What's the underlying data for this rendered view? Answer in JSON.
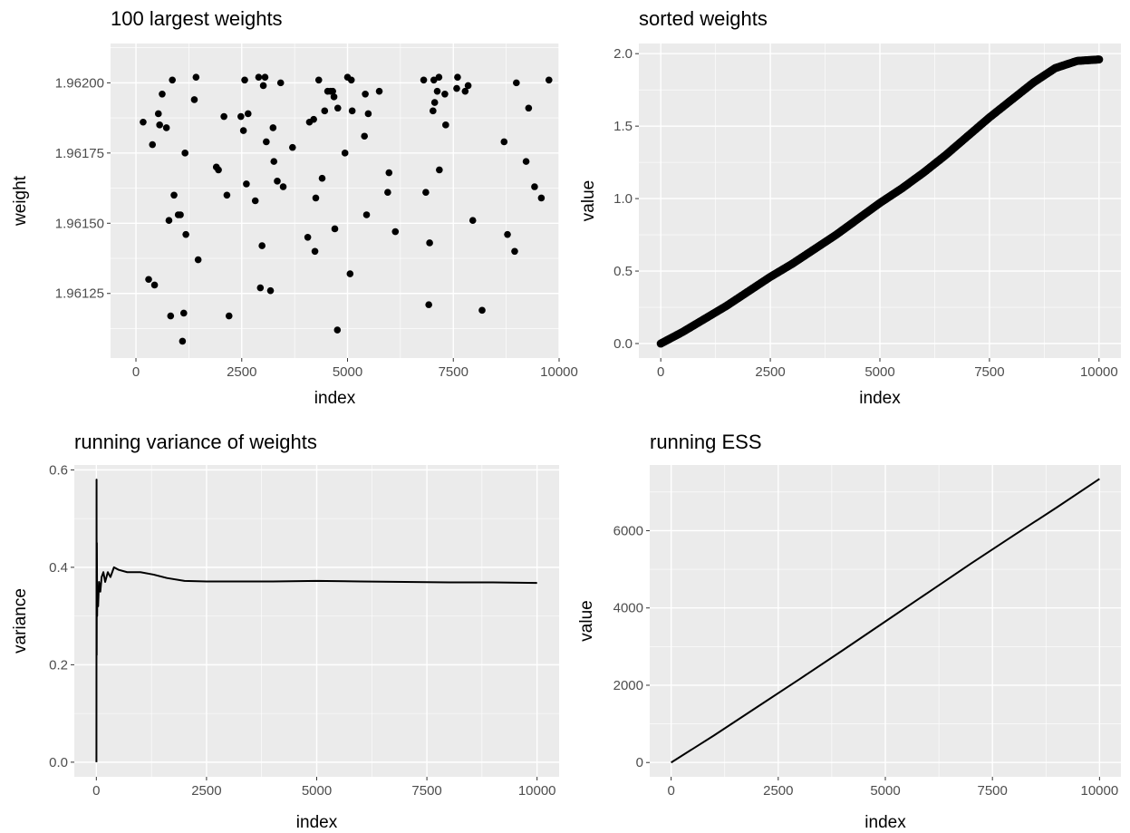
{
  "chart_data": [
    {
      "type": "scatter",
      "title": "100 largest weights",
      "xlabel": "index",
      "ylabel": "weight",
      "xlim": [
        -600,
        10000
      ],
      "ylim": [
        1.96102,
        1.96214
      ],
      "xticks": [
        0,
        2500,
        5000,
        7500,
        10000
      ],
      "xtick_labels": [
        "0",
        "2500",
        "5000",
        "7500",
        "10000"
      ],
      "yticks": [
        1.96125,
        1.9615,
        1.96175,
        1.962
      ],
      "ytick_labels": [
        "1.96125",
        "1.96150",
        "1.96175",
        "1.96200"
      ],
      "grid": true,
      "color": "#000000",
      "points": [
        [
          170,
          1.96186
        ],
        [
          300,
          1.9613
        ],
        [
          390,
          1.96178
        ],
        [
          440,
          1.96128
        ],
        [
          530,
          1.96189
        ],
        [
          560,
          1.96185
        ],
        [
          620,
          1.96196
        ],
        [
          720,
          1.96184
        ],
        [
          780,
          1.96151
        ],
        [
          820,
          1.96117
        ],
        [
          860,
          1.96201
        ],
        [
          900,
          1.9616
        ],
        [
          1000,
          1.96153
        ],
        [
          1050,
          1.96153
        ],
        [
          1130,
          1.96118
        ],
        [
          1100,
          1.96108
        ],
        [
          1160,
          1.96175
        ],
        [
          1180,
          1.96146
        ],
        [
          1380,
          1.96194
        ],
        [
          1420,
          1.96202
        ],
        [
          1470,
          1.96137
        ],
        [
          1900,
          1.9617
        ],
        [
          1950,
          1.96169
        ],
        [
          2080,
          1.96188
        ],
        [
          2150,
          1.9616
        ],
        [
          2200,
          1.96117
        ],
        [
          2480,
          1.96188
        ],
        [
          2540,
          1.96183
        ],
        [
          2570,
          1.96201
        ],
        [
          2610,
          1.96164
        ],
        [
          2650,
          1.96189
        ],
        [
          2820,
          1.96158
        ],
        [
          2900,
          1.96202
        ],
        [
          2940,
          1.96127
        ],
        [
          2980,
          1.96142
        ],
        [
          3010,
          1.96199
        ],
        [
          3050,
          1.96202
        ],
        [
          3080,
          1.96179
        ],
        [
          3180,
          1.96126
        ],
        [
          3240,
          1.96184
        ],
        [
          3260,
          1.96172
        ],
        [
          3340,
          1.96165
        ],
        [
          3420,
          1.962
        ],
        [
          3480,
          1.96163
        ],
        [
          3700,
          1.96177
        ],
        [
          4060,
          1.96145
        ],
        [
          4100,
          1.96186
        ],
        [
          4200,
          1.96187
        ],
        [
          4230,
          1.9614
        ],
        [
          4250,
          1.96159
        ],
        [
          4320,
          1.96201
        ],
        [
          4400,
          1.96166
        ],
        [
          4460,
          1.9619
        ],
        [
          4530,
          1.96197
        ],
        [
          4600,
          1.96197
        ],
        [
          4650,
          1.96197
        ],
        [
          4680,
          1.96195
        ],
        [
          4700,
          1.96148
        ],
        [
          4760,
          1.96112
        ],
        [
          4770,
          1.96191
        ],
        [
          4940,
          1.96175
        ],
        [
          5000,
          1.96202
        ],
        [
          5060,
          1.96132
        ],
        [
          5090,
          1.96201
        ],
        [
          5110,
          1.9619
        ],
        [
          5400,
          1.96181
        ],
        [
          5420,
          1.96196
        ],
        [
          5450,
          1.96153
        ],
        [
          5490,
          1.96189
        ],
        [
          5750,
          1.96197
        ],
        [
          5950,
          1.96161
        ],
        [
          5980,
          1.96168
        ],
        [
          6130,
          1.96147
        ],
        [
          6800,
          1.96201
        ],
        [
          6850,
          1.96161
        ],
        [
          6920,
          1.96121
        ],
        [
          6940,
          1.96143
        ],
        [
          7020,
          1.9619
        ],
        [
          7040,
          1.96201
        ],
        [
          7060,
          1.96193
        ],
        [
          7120,
          1.96197
        ],
        [
          7160,
          1.96202
        ],
        [
          7170,
          1.96169
        ],
        [
          7300,
          1.96196
        ],
        [
          7320,
          1.96185
        ],
        [
          7580,
          1.96198
        ],
        [
          7600,
          1.96202
        ],
        [
          7780,
          1.96197
        ],
        [
          7850,
          1.96199
        ],
        [
          7960,
          1.96151
        ],
        [
          8180,
          1.96119
        ],
        [
          8700,
          1.96179
        ],
        [
          8780,
          1.96146
        ],
        [
          8950,
          1.9614
        ],
        [
          8990,
          1.962
        ],
        [
          9220,
          1.96172
        ],
        [
          9280,
          1.96191
        ],
        [
          9420,
          1.96163
        ],
        [
          9580,
          1.96159
        ],
        [
          9760,
          1.96201
        ]
      ]
    },
    {
      "type": "scatter",
      "title": "sorted weights",
      "xlabel": "index",
      "ylabel": "value",
      "xlim": [
        -500,
        10500
      ],
      "ylim": [
        -0.1,
        2.07
      ],
      "xticks": [
        0,
        2500,
        5000,
        7500,
        10000
      ],
      "xtick_labels": [
        "0",
        "2500",
        "5000",
        "7500",
        "10000"
      ],
      "yticks": [
        0.0,
        0.5,
        1.0,
        1.5,
        2.0
      ],
      "ytick_labels": [
        "0.0",
        "0.5",
        "1.0",
        "1.5",
        "2.0"
      ],
      "grid": true,
      "color": "#000000",
      "curve_samples": [
        [
          0,
          0.0
        ],
        [
          500,
          0.08
        ],
        [
          1000,
          0.17
        ],
        [
          1500,
          0.26
        ],
        [
          2000,
          0.36
        ],
        [
          2500,
          0.46
        ],
        [
          3000,
          0.55
        ],
        [
          3500,
          0.65
        ],
        [
          4000,
          0.75
        ],
        [
          4500,
          0.86
        ],
        [
          5000,
          0.97
        ],
        [
          5500,
          1.07
        ],
        [
          6000,
          1.18
        ],
        [
          6500,
          1.3
        ],
        [
          7000,
          1.43
        ],
        [
          7500,
          1.56
        ],
        [
          8000,
          1.68
        ],
        [
          8500,
          1.8
        ],
        [
          9000,
          1.9
        ],
        [
          9500,
          1.95
        ],
        [
          10000,
          1.96
        ]
      ]
    },
    {
      "type": "line",
      "title": "running variance of weights",
      "xlabel": "index",
      "ylabel": "variance",
      "xlim": [
        -500,
        10500
      ],
      "ylim": [
        -0.03,
        0.61
      ],
      "xticks": [
        0,
        2500,
        5000,
        7500,
        10000
      ],
      "xtick_labels": [
        "0",
        "2500",
        "5000",
        "7500",
        "10000"
      ],
      "yticks": [
        0.0,
        0.2,
        0.4,
        0.6
      ],
      "ytick_labels": [
        "0.0",
        "0.2",
        "0.4",
        "0.6"
      ],
      "grid": true,
      "color": "#000000",
      "points": [
        [
          2,
          0.0
        ],
        [
          5,
          0.58
        ],
        [
          8,
          0.22
        ],
        [
          12,
          0.45
        ],
        [
          18,
          0.3
        ],
        [
          25,
          0.36
        ],
        [
          40,
          0.32
        ],
        [
          60,
          0.37
        ],
        [
          90,
          0.35
        ],
        [
          120,
          0.38
        ],
        [
          160,
          0.39
        ],
        [
          200,
          0.37
        ],
        [
          260,
          0.39
        ],
        [
          320,
          0.38
        ],
        [
          400,
          0.4
        ],
        [
          500,
          0.395
        ],
        [
          700,
          0.39
        ],
        [
          1000,
          0.39
        ],
        [
          1300,
          0.385
        ],
        [
          1600,
          0.378
        ],
        [
          2000,
          0.372
        ],
        [
          2500,
          0.371
        ],
        [
          3000,
          0.371
        ],
        [
          4000,
          0.371
        ],
        [
          5000,
          0.372
        ],
        [
          6000,
          0.371
        ],
        [
          7000,
          0.37
        ],
        [
          8000,
          0.369
        ],
        [
          9000,
          0.369
        ],
        [
          10000,
          0.368
        ]
      ]
    },
    {
      "type": "line",
      "title": "running ESS",
      "xlabel": "index",
      "ylabel": "value",
      "xlim": [
        -500,
        10500
      ],
      "ylim": [
        -370,
        7700
      ],
      "xticks": [
        0,
        2500,
        5000,
        7500,
        10000
      ],
      "xtick_labels": [
        "0",
        "2500",
        "5000",
        "7500",
        "10000"
      ],
      "yticks": [
        0,
        2000,
        4000,
        6000
      ],
      "ytick_labels": [
        "0",
        "2000",
        "4000",
        "6000"
      ],
      "grid": true,
      "color": "#000000",
      "points": [
        [
          0,
          0
        ],
        [
          1000,
          700
        ],
        [
          2000,
          1430
        ],
        [
          3000,
          2160
        ],
        [
          4000,
          2900
        ],
        [
          5000,
          3650
        ],
        [
          6000,
          4400
        ],
        [
          7000,
          5150
        ],
        [
          8000,
          5880
        ],
        [
          9000,
          6600
        ],
        [
          10000,
          7340
        ]
      ]
    }
  ]
}
